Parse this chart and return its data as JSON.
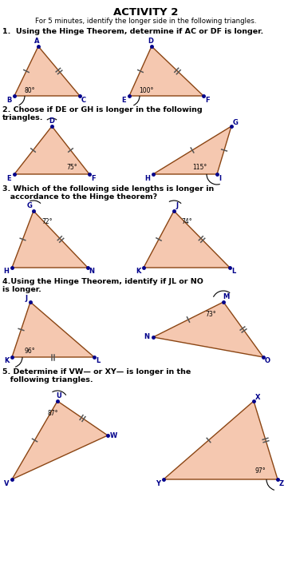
{
  "title": "ACTIVITY 2",
  "subtitle": "For 5 minutes, identify the longer side in the following triangles.",
  "q1_text": "1.  Using the Hinge Theorem, determine if AC or DF is longer.",
  "q2_text": "2. Choose if DE or GH is longer in the following\ntriangles.",
  "q3_text": "3. Which of the following side lengths is longer in\n   accordance to the Hinge theorem?",
  "q4_text": "4.Using the Hinge Theorem, identify if JL or NO\nis longer.",
  "q5_text": "5. Determine if VW— or XY— is longer in the\n   following triangles.",
  "bg_color": "#ffffff",
  "tri_fill": "#f5c8b0",
  "tri_edge": "#8b4513",
  "label_color": "#00008b",
  "angle_color": "#000000",
  "tick_color": "#555555",
  "figw": 3.66,
  "figh": 7.36,
  "dpi": 100
}
